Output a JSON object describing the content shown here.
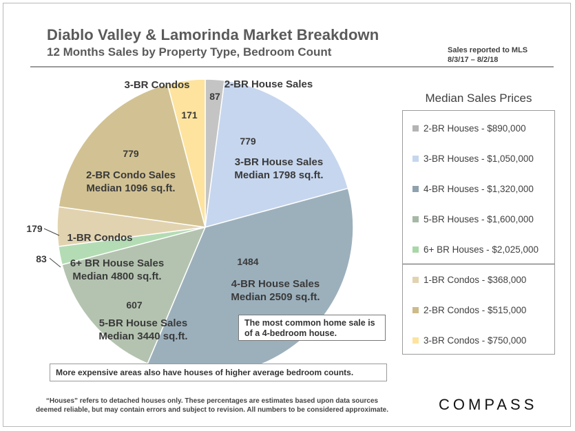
{
  "header": {
    "title": "Diablo Valley & Lamorinda Market Breakdown",
    "subtitle": "12 Months Sales by Property Type, Bedroom Count",
    "source_line1": "Sales reported to MLS",
    "source_line2": "8/3/17 – 8/2/18"
  },
  "chart_data": {
    "type": "pie",
    "start_angle_deg": 0,
    "slices": [
      {
        "name": "2-BR House Sales",
        "value": 87,
        "color": "#c4c4c4",
        "label": "2-BR House Sales",
        "sublabel": ""
      },
      {
        "name": "3-BR House Sales",
        "value": 779,
        "color": "#c6d6ee",
        "label": "3-BR House Sales",
        "sublabel": "Median 1798 sq.ft."
      },
      {
        "name": "4-BR House Sales",
        "value": 1484,
        "color": "#9cb0bc",
        "label": "4-BR House Sales",
        "sublabel": "Median 2509 sq.ft."
      },
      {
        "name": "5-BR House Sales",
        "value": 607,
        "color": "#b4c3b0",
        "label": "5-BR House Sales",
        "sublabel": "Median 3440 sq.ft."
      },
      {
        "name": "6+ BR House Sales",
        "value": 83,
        "color": "#b4dcb4",
        "label": "6+ BR House Sales",
        "sublabel": "Median 4800 sq.ft."
      },
      {
        "name": "1-BR Condos",
        "value": 179,
        "color": "#e2d3b0",
        "label": "1-BR Condos",
        "sublabel": ""
      },
      {
        "name": "2-BR Condo Sales",
        "value": 779,
        "color": "#d2c293",
        "label": "2-BR Condo Sales",
        "sublabel": "Median 1096 sq.ft."
      },
      {
        "name": "3-BR Condos",
        "value": 171,
        "color": "#fde39e",
        "label": "3-BR Condos",
        "sublabel": ""
      }
    ]
  },
  "legend": {
    "title": "Median Sales Prices",
    "items": [
      {
        "label": "2-BR Houses - $890,000",
        "color": "#b4b4b4"
      },
      {
        "label": "3-BR Houses - $1,050,000",
        "color": "#c6d6ee"
      },
      {
        "label": "4-BR Houses - $1,320,000",
        "color": "#8ea2b0"
      },
      {
        "label": "5-BR Houses - $1,600,000",
        "color": "#a6b8a6"
      },
      {
        "label": "6+ BR Houses - $2,025,000",
        "color": "#a8d8a8"
      },
      {
        "label": "1-BR Condos - $368,000",
        "color": "#e2d3b0"
      },
      {
        "label": "2-BR Condos - $515,000",
        "color": "#cdbb8a"
      },
      {
        "label": "3-BR Condos - $750,000",
        "color": "#fde39e"
      }
    ]
  },
  "notes": {
    "common_sale": "The most common home sale is of a 4-bedroom house.",
    "expensive_areas": "More expensive areas also have houses of higher average bedroom counts."
  },
  "footer": {
    "line1": "“Houses” refers to detached houses only.  These percentages are estimates based upon data sources",
    "line2": "deemed reliable, but may contain errors and subject to revision.  All numbers to be considered approximate."
  },
  "brand": {
    "logo_text": "COMPASS"
  }
}
